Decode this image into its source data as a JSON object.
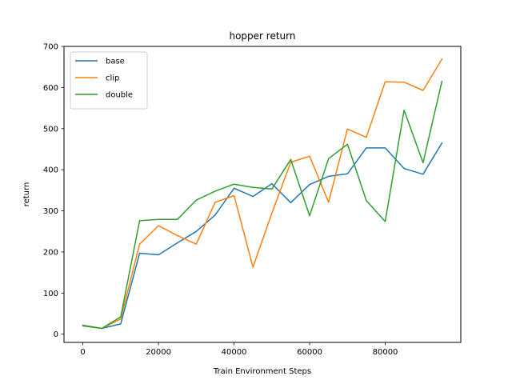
{
  "chart_data": {
    "type": "line",
    "title": "hopper return",
    "xlabel": "Train Environment Steps",
    "ylabel": "return",
    "xlim": [
      -5000,
      100000
    ],
    "ylim": [
      -20,
      700
    ],
    "xticks": [
      0,
      20000,
      40000,
      60000,
      80000
    ],
    "yticks": [
      0,
      100,
      200,
      300,
      400,
      500,
      600,
      700
    ],
    "grid": false,
    "legend_position": "top-left",
    "x": [
      0,
      5000,
      10000,
      15000,
      20000,
      25000,
      30000,
      35000,
      40000,
      45000,
      50000,
      55000,
      60000,
      65000,
      70000,
      75000,
      80000,
      85000,
      90000,
      95000
    ],
    "series": [
      {
        "name": "base",
        "color": "#1f77b4",
        "values": [
          20,
          14,
          25,
          197,
          193,
          222,
          250,
          290,
          355,
          335,
          366,
          320,
          364,
          384,
          390,
          453,
          453,
          403,
          389,
          465
        ]
      },
      {
        "name": "clip",
        "color": "#ff7f0e",
        "values": [
          22,
          14,
          37,
          219,
          264,
          240,
          219,
          321,
          337,
          163,
          294,
          418,
          433,
          321,
          499,
          479,
          614,
          613,
          593,
          669
        ]
      },
      {
        "name": "double",
        "color": "#2ca02c",
        "values": [
          21,
          14,
          42,
          276,
          279,
          279,
          326,
          348,
          365,
          357,
          353,
          425,
          288,
          427,
          462,
          325,
          274,
          545,
          417,
          615
        ]
      }
    ]
  }
}
